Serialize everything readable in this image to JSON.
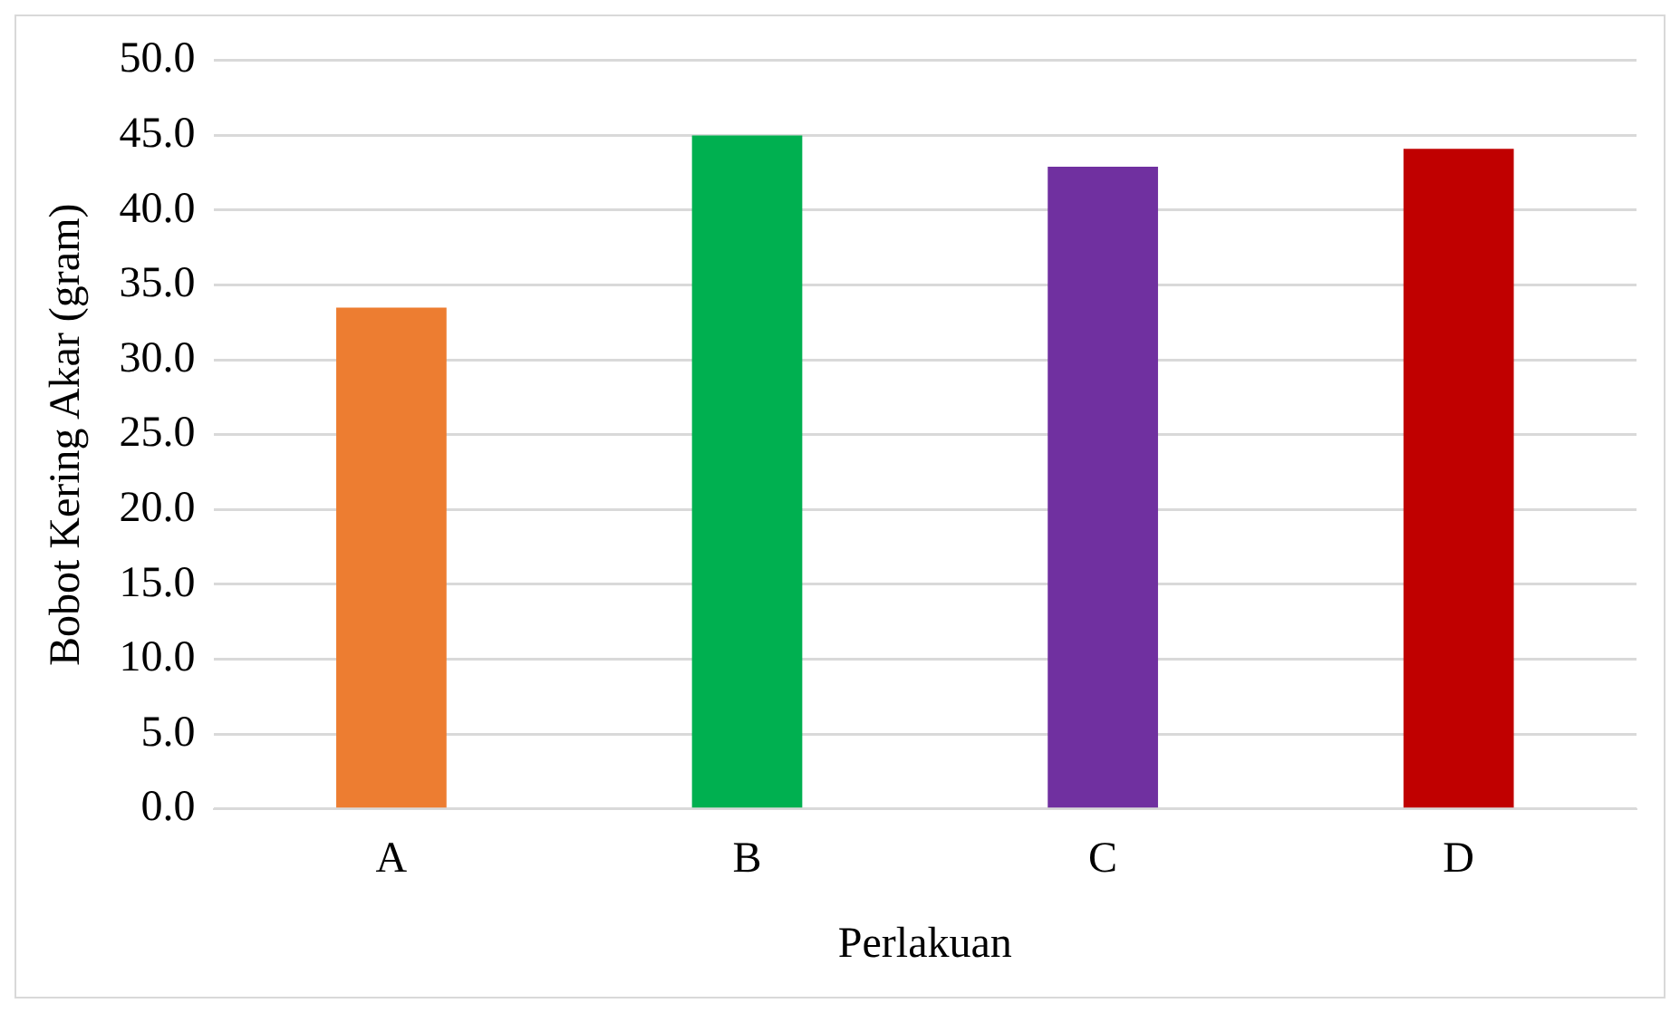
{
  "chart_data": {
    "type": "bar",
    "xlabel": "Perlakuan",
    "ylabel": "Bobot Kering Akar (gram)",
    "categories": [
      "A",
      "B",
      "C",
      "D"
    ],
    "values": [
      33.5,
      45.0,
      42.9,
      44.1
    ],
    "colors": [
      "#ed7d31",
      "#00b050",
      "#7030a0",
      "#c00000"
    ],
    "ylim": [
      0,
      50
    ],
    "yticks": [
      {
        "value": 0,
        "label": "0.0"
      },
      {
        "value": 5,
        "label": "5.0"
      },
      {
        "value": 10,
        "label": "10.0"
      },
      {
        "value": 15,
        "label": "15.0"
      },
      {
        "value": 20,
        "label": "20.0"
      },
      {
        "value": 25,
        "label": "25.0"
      },
      {
        "value": 30,
        "label": "30.0"
      },
      {
        "value": 35,
        "label": "35.0"
      },
      {
        "value": 40,
        "label": "40.0"
      },
      {
        "value": 45,
        "label": "45.0"
      },
      {
        "value": 50,
        "label": "50.0"
      }
    ],
    "grid": "y"
  }
}
